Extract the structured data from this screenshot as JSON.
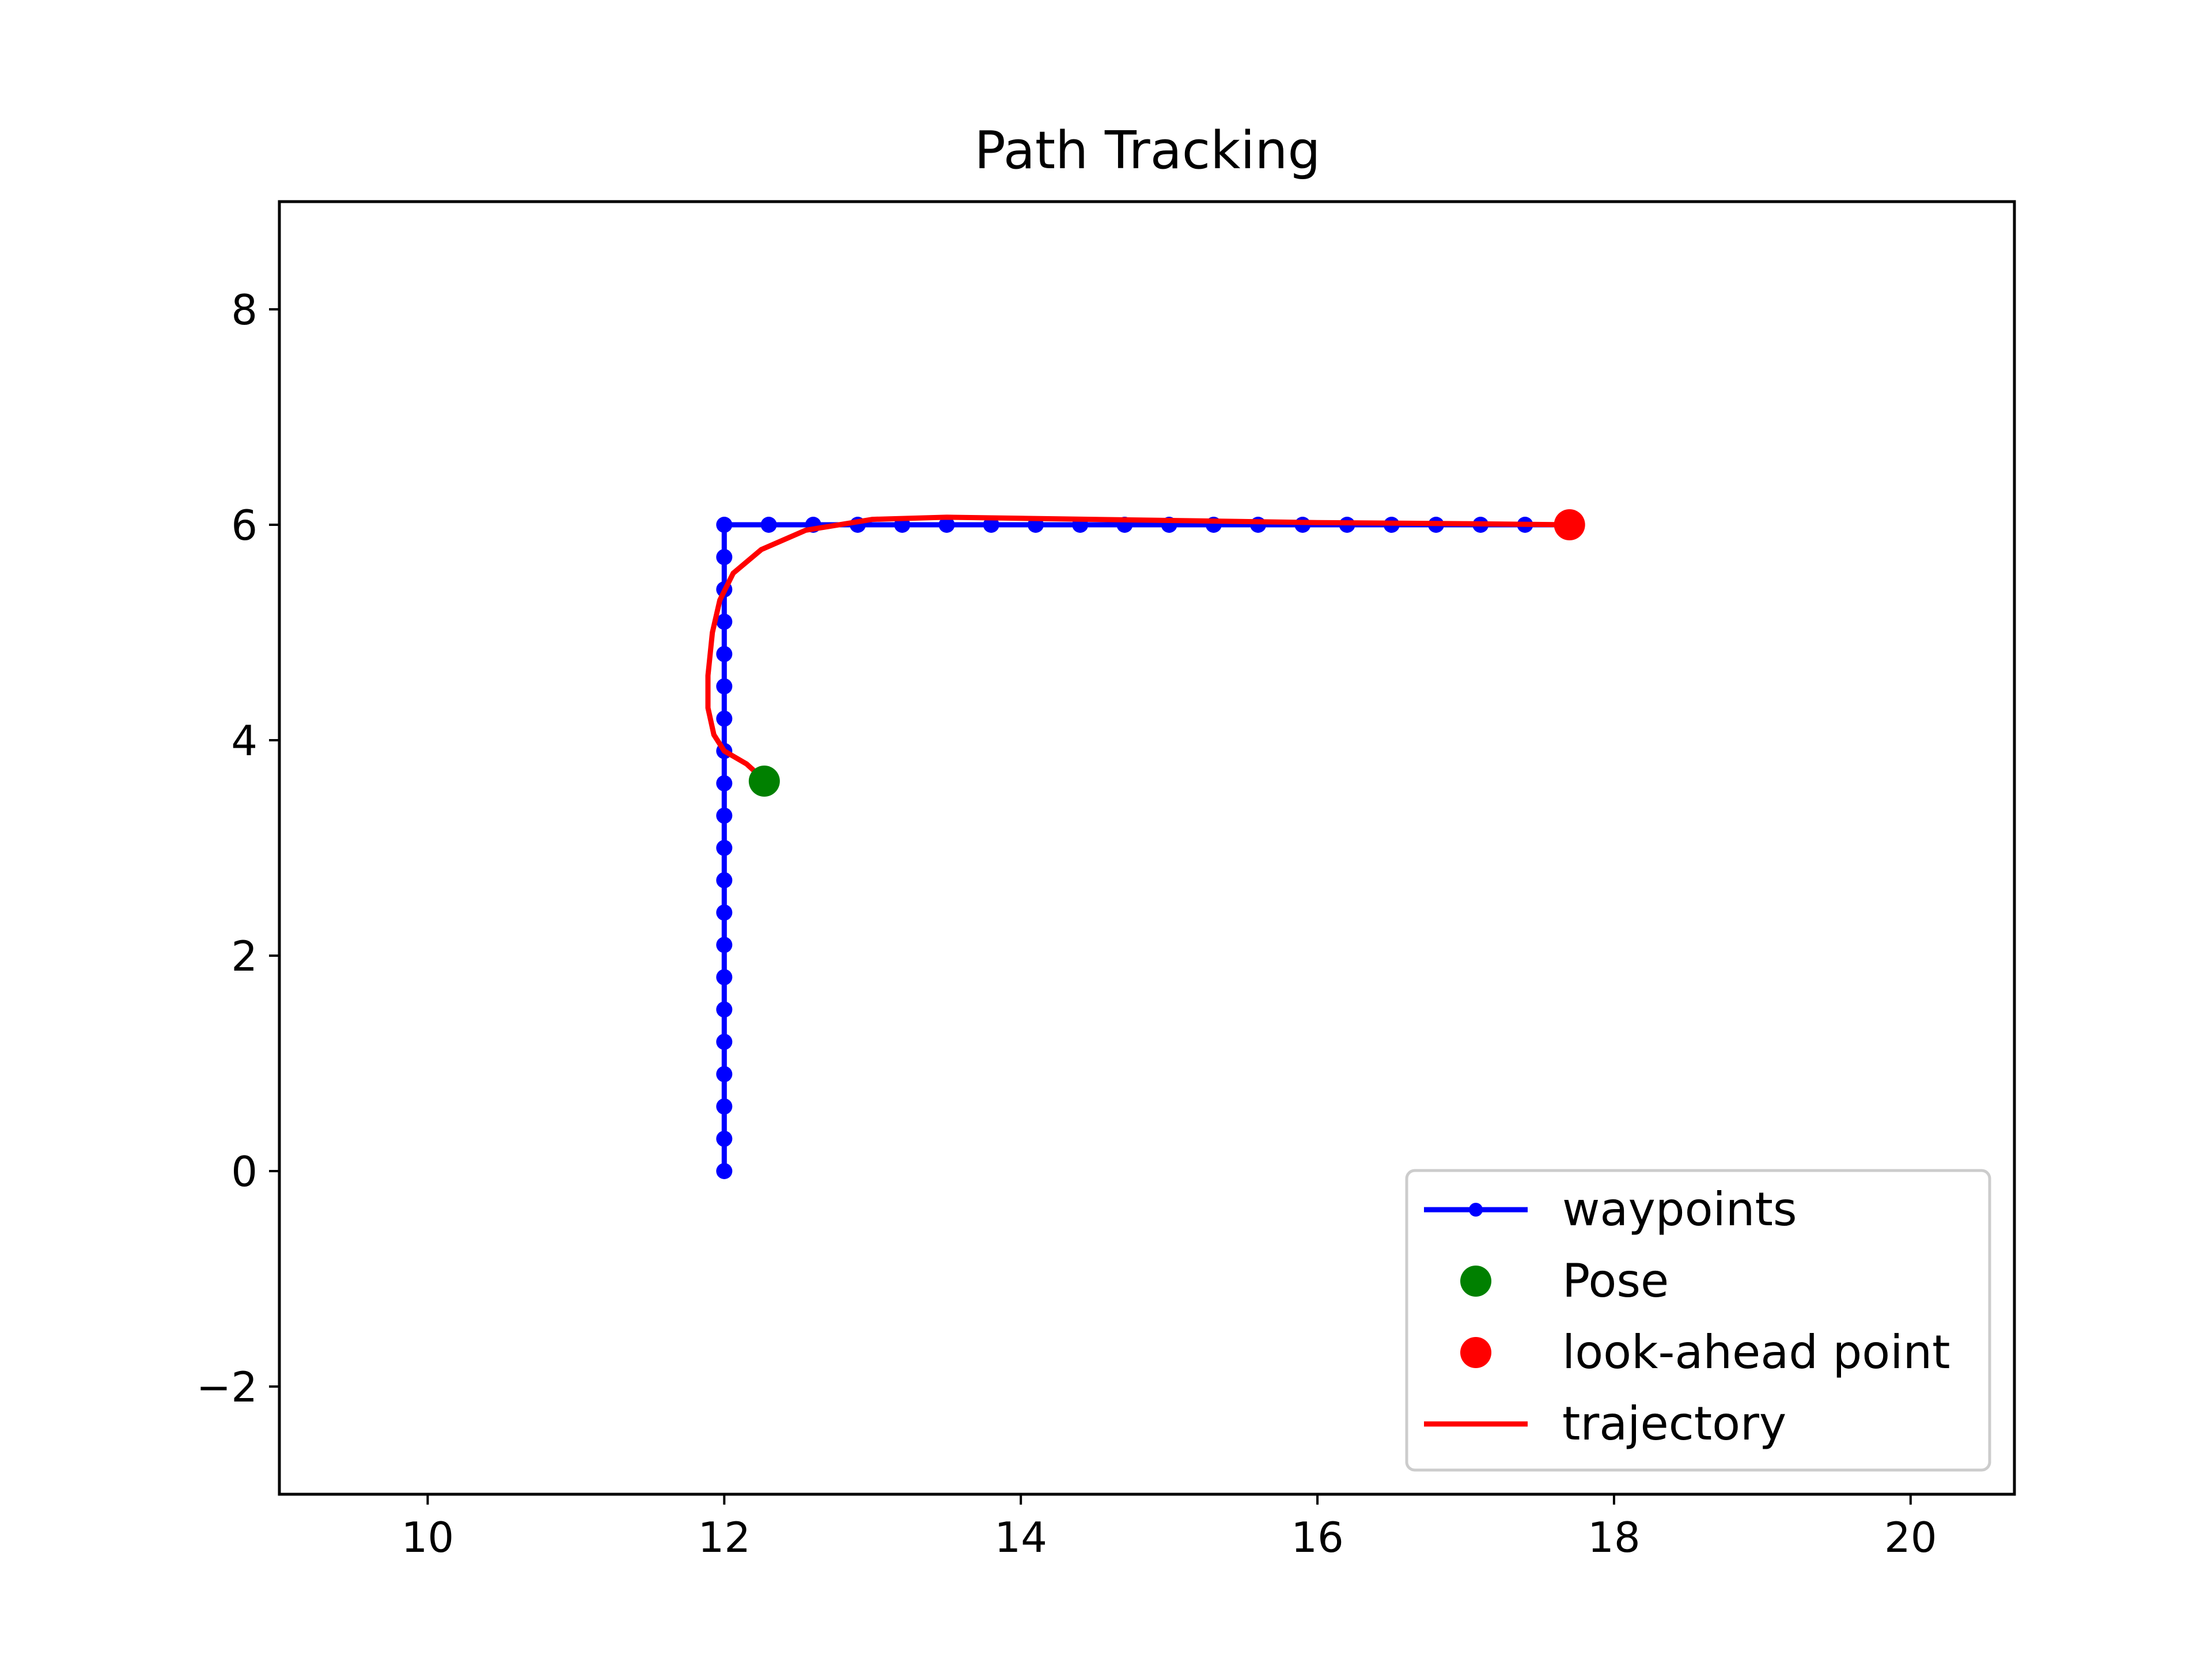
{
  "chart_data": {
    "type": "line",
    "title": "Path Tracking",
    "xlabel": "",
    "ylabel": "",
    "xlim": [
      9.0,
      20.7
    ],
    "ylim": [
      -3.0,
      9.0
    ],
    "xticks": [
      10,
      12,
      14,
      16,
      18,
      20
    ],
    "yticks": [
      -2,
      0,
      2,
      4,
      6,
      8
    ],
    "xtick_labels": [
      "10",
      "12",
      "14",
      "16",
      "18",
      "20"
    ],
    "ytick_labels": [
      "−2",
      "0",
      "2",
      "4",
      "6",
      "8"
    ],
    "grid": false,
    "legend_position": "lower-right",
    "series": [
      {
        "name": "waypoints",
        "kind": "line-with-markers",
        "color": "#0000ff",
        "points": [
          [
            12,
            0
          ],
          [
            12,
            0.3
          ],
          [
            12,
            0.6
          ],
          [
            12,
            0.9
          ],
          [
            12,
            1.2
          ],
          [
            12,
            1.5
          ],
          [
            12,
            1.8
          ],
          [
            12,
            2.1
          ],
          [
            12,
            2.4
          ],
          [
            12,
            2.7
          ],
          [
            12,
            3.0
          ],
          [
            12,
            3.3
          ],
          [
            12,
            3.6
          ],
          [
            12,
            3.9
          ],
          [
            12,
            4.2
          ],
          [
            12,
            4.5
          ],
          [
            12,
            4.8
          ],
          [
            12,
            5.1
          ],
          [
            12,
            5.4
          ],
          [
            12,
            5.7
          ],
          [
            12,
            6.0
          ],
          [
            12.3,
            6
          ],
          [
            12.6,
            6
          ],
          [
            12.9,
            6
          ],
          [
            13.2,
            6
          ],
          [
            13.5,
            6
          ],
          [
            13.8,
            6
          ],
          [
            14.1,
            6
          ],
          [
            14.4,
            6
          ],
          [
            14.7,
            6
          ],
          [
            15.0,
            6
          ],
          [
            15.3,
            6
          ],
          [
            15.6,
            6
          ],
          [
            15.9,
            6
          ],
          [
            16.2,
            6
          ],
          [
            16.5,
            6
          ],
          [
            16.8,
            6
          ],
          [
            17.1,
            6
          ],
          [
            17.4,
            6
          ],
          [
            17.7,
            6
          ]
        ]
      },
      {
        "name": "Pose",
        "kind": "marker",
        "color": "#008000",
        "points": [
          [
            12.27,
            3.62
          ]
        ]
      },
      {
        "name": "look-ahead point",
        "kind": "marker",
        "color": "#ff0000",
        "points": [
          [
            17.7,
            6.0
          ]
        ]
      },
      {
        "name": "trajectory",
        "kind": "line",
        "color": "#ff0000",
        "points": [
          [
            12.27,
            3.63
          ],
          [
            12.15,
            3.78
          ],
          [
            12.0,
            3.9
          ],
          [
            11.93,
            4.05
          ],
          [
            11.89,
            4.3
          ],
          [
            11.89,
            4.6
          ],
          [
            11.92,
            5.0
          ],
          [
            11.97,
            5.3
          ],
          [
            12.06,
            5.55
          ],
          [
            12.25,
            5.77
          ],
          [
            12.55,
            5.95
          ],
          [
            13.0,
            6.05
          ],
          [
            13.5,
            6.07
          ],
          [
            14.0,
            6.06
          ],
          [
            15.0,
            6.04
          ],
          [
            16.0,
            6.02
          ],
          [
            17.0,
            6.01
          ],
          [
            17.7,
            6.0
          ]
        ]
      }
    ]
  }
}
